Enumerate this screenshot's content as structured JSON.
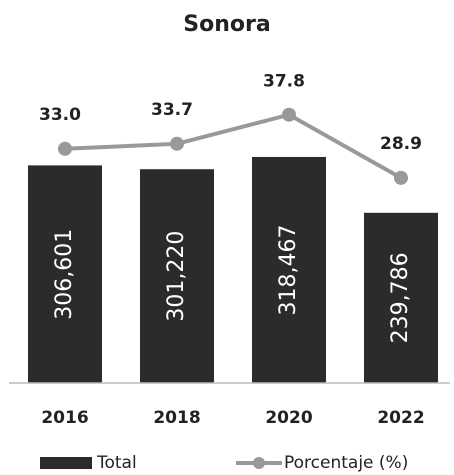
{
  "chart_data": {
    "type": "bar",
    "title": "Sonora",
    "categories": [
      "2016",
      "2018",
      "2020",
      "2022"
    ],
    "series": [
      {
        "name": "Total",
        "type": "bar",
        "color": "#2b2b2b",
        "values": [
          306601,
          301220,
          318467,
          239786
        ],
        "value_labels": [
          "306,601",
          "301,220",
          "318,467",
          "239,786"
        ]
      },
      {
        "name": "Porcentaje (%)",
        "type": "line",
        "axis": "y2",
        "color": "#999999",
        "values": [
          33.0,
          33.7,
          37.8,
          28.9
        ],
        "value_labels": [
          "33.0",
          "33.7",
          "37.8",
          "28.9"
        ]
      }
    ],
    "ylim": [
      0,
      410000
    ],
    "y2lim": [
      0,
      41
    ],
    "legend": "bottom"
  }
}
